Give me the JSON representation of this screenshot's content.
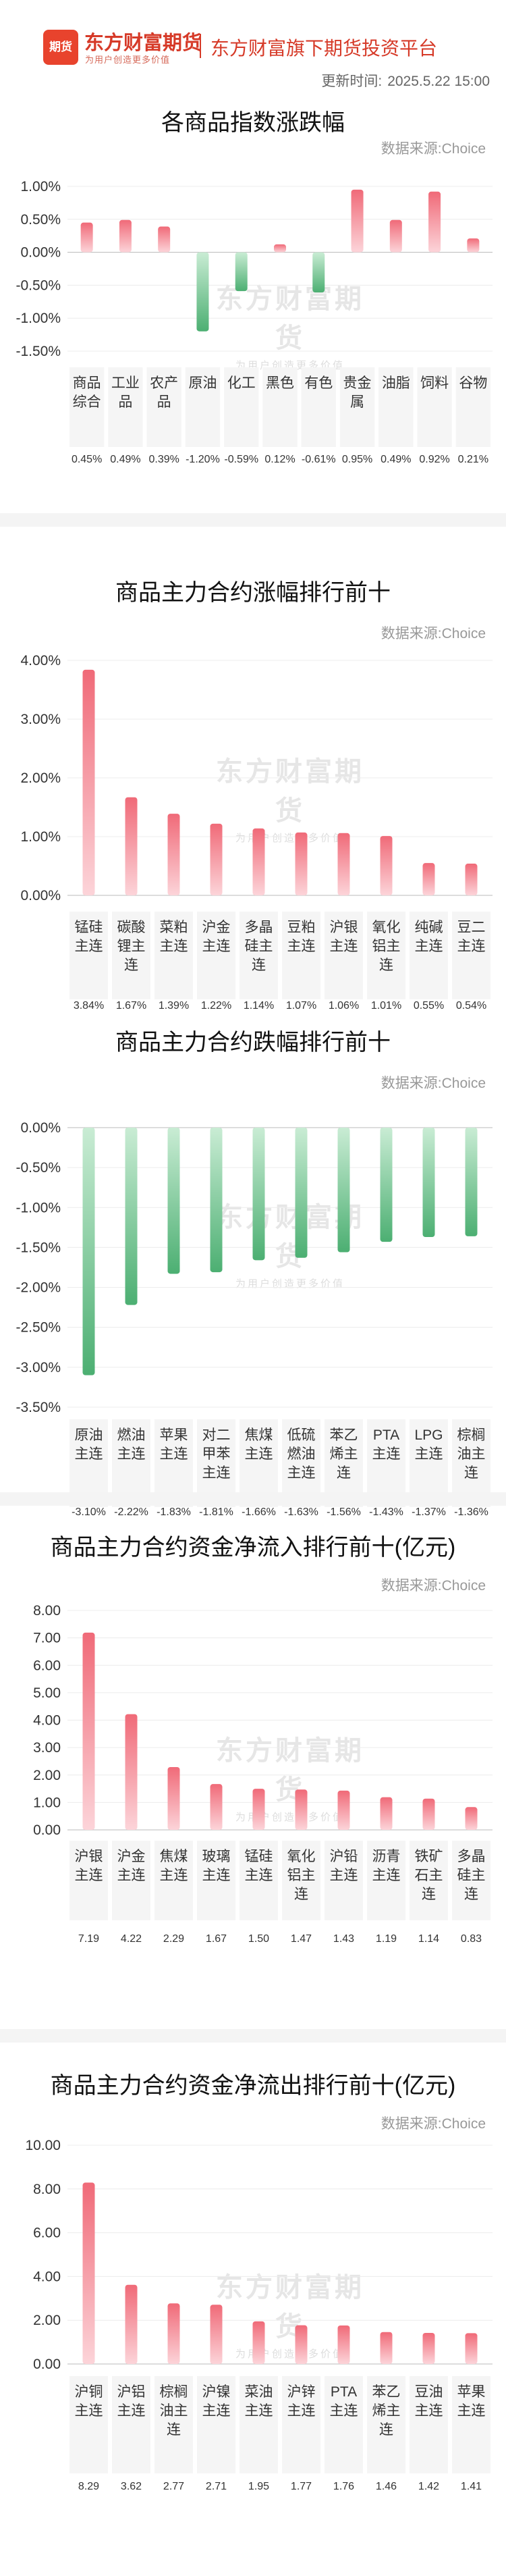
{
  "header": {
    "logo_text": "东方财富期货",
    "logo_mark": "期货",
    "slogan": "为用户创造更多价值",
    "platform": "东方财富旗下期货投资平台",
    "update_label": "更新时间:",
    "update_time": "2025.5.22 15:00"
  },
  "watermark": {
    "main": "东方财富期货",
    "sub": "为用户创造更多价值"
  },
  "colors": {
    "up_top": "#f06a78",
    "up_bottom": "#fcd4d9",
    "down_top": "#4caf72",
    "down_bottom": "#c9ecd4"
  },
  "charts": [
    {
      "title": "各商品指数涨跌幅",
      "source": "数据来源:Choice",
      "chart_data": {
        "type": "bar",
        "categories": [
          "商品综合",
          "工业品",
          "农产品",
          "原油",
          "化工",
          "黑色",
          "有色",
          "贵金属",
          "油脂",
          "饲料",
          "谷物"
        ],
        "values": [
          0.45,
          0.49,
          0.39,
          -1.2,
          -0.59,
          0.12,
          -0.61,
          0.95,
          0.49,
          0.92,
          0.21
        ],
        "value_labels": [
          "0.45%",
          "0.49%",
          "0.39%",
          "-1.20%",
          "-0.59%",
          "0.12%",
          "-0.61%",
          "0.95%",
          "0.49%",
          "0.92%",
          "0.21%"
        ],
        "yticks": [
          "1.00%",
          "0.50%",
          "0.00%",
          "-0.50%",
          "-1.00%",
          "-1.50%"
        ],
        "ylim": [
          -1.5,
          1.0
        ]
      }
    },
    {
      "title": "商品主力合约涨幅排行前十",
      "source": "数据来源:Choice",
      "chart_data": {
        "type": "bar",
        "categories": [
          "锰硅主连",
          "碳酸锂主连",
          "菜粕主连",
          "沪金主连",
          "多晶硅主连",
          "豆粕主连",
          "沪银主连",
          "氧化铝主连",
          "纯碱主连",
          "豆二主连"
        ],
        "values": [
          3.84,
          1.67,
          1.39,
          1.22,
          1.14,
          1.07,
          1.06,
          1.01,
          0.55,
          0.54
        ],
        "value_labels": [
          "3.84%",
          "1.67%",
          "1.39%",
          "1.22%",
          "1.14%",
          "1.07%",
          "1.06%",
          "1.01%",
          "0.55%",
          "0.54%"
        ],
        "yticks": [
          "4.00%",
          "3.00%",
          "2.00%",
          "1.00%",
          "0.00%"
        ],
        "ylim": [
          0,
          4.0
        ]
      }
    },
    {
      "title": "商品主力合约跌幅排行前十",
      "source": "数据来源:Choice",
      "chart_data": {
        "type": "bar",
        "categories": [
          "原油主连",
          "燃油主连",
          "苹果主连",
          "对二甲苯主连",
          "焦煤主连",
          "低硫燃油主连",
          "苯乙烯主连",
          "PTA主连",
          "LPG主连",
          "棕榈油主连"
        ],
        "values": [
          -3.1,
          -2.22,
          -1.83,
          -1.81,
          -1.66,
          -1.63,
          -1.56,
          -1.43,
          -1.37,
          -1.36
        ],
        "value_labels": [
          "-3.10%",
          "-2.22%",
          "-1.83%",
          "-1.81%",
          "-1.66%",
          "-1.63%",
          "-1.56%",
          "-1.43%",
          "-1.37%",
          "-1.36%"
        ],
        "yticks": [
          "0.00%",
          "-0.50%",
          "-1.00%",
          "-1.50%",
          "-2.00%",
          "-2.50%",
          "-3.00%",
          "-3.50%"
        ],
        "ylim": [
          -3.5,
          0
        ]
      }
    },
    {
      "title": "商品主力合约资金净流入排行前十(亿元)",
      "source": "数据来源:Choice",
      "chart_data": {
        "type": "bar",
        "categories": [
          "沪银主连",
          "沪金主连",
          "焦煤主连",
          "玻璃主连",
          "锰硅主连",
          "氧化铝主连",
          "沪铅主连",
          "沥青主连",
          "铁矿石主连",
          "多晶硅主连"
        ],
        "values": [
          7.19,
          4.22,
          2.29,
          1.67,
          1.5,
          1.47,
          1.43,
          1.19,
          1.14,
          0.83
        ],
        "value_labels": [
          "7.19",
          "4.22",
          "2.29",
          "1.67",
          "1.50",
          "1.47",
          "1.43",
          "1.19",
          "1.14",
          "0.83"
        ],
        "yticks": [
          "8.00",
          "7.00",
          "6.00",
          "5.00",
          "4.00",
          "3.00",
          "2.00",
          "1.00",
          "0.00"
        ],
        "ylim": [
          0,
          8.0
        ]
      }
    },
    {
      "title": "商品主力合约资金净流出排行前十(亿元)",
      "source": "数据来源:Choice",
      "chart_data": {
        "type": "bar",
        "categories": [
          "沪铜主连",
          "沪铝主连",
          "棕榈油主连",
          "沪镍主连",
          "菜油主连",
          "沪锌主连",
          "PTA主连",
          "苯乙烯主连",
          "豆油主连",
          "苹果主连"
        ],
        "values": [
          8.29,
          3.62,
          2.77,
          2.71,
          1.95,
          1.77,
          1.76,
          1.46,
          1.42,
          1.41
        ],
        "value_labels": [
          "8.29",
          "3.62",
          "2.77",
          "2.71",
          "1.95",
          "1.77",
          "1.76",
          "1.46",
          "1.42",
          "1.41"
        ],
        "yticks": [
          "10.00",
          "8.00",
          "6.00",
          "4.00",
          "2.00",
          "0.00"
        ],
        "ylim": [
          0,
          10.0
        ]
      }
    }
  ]
}
